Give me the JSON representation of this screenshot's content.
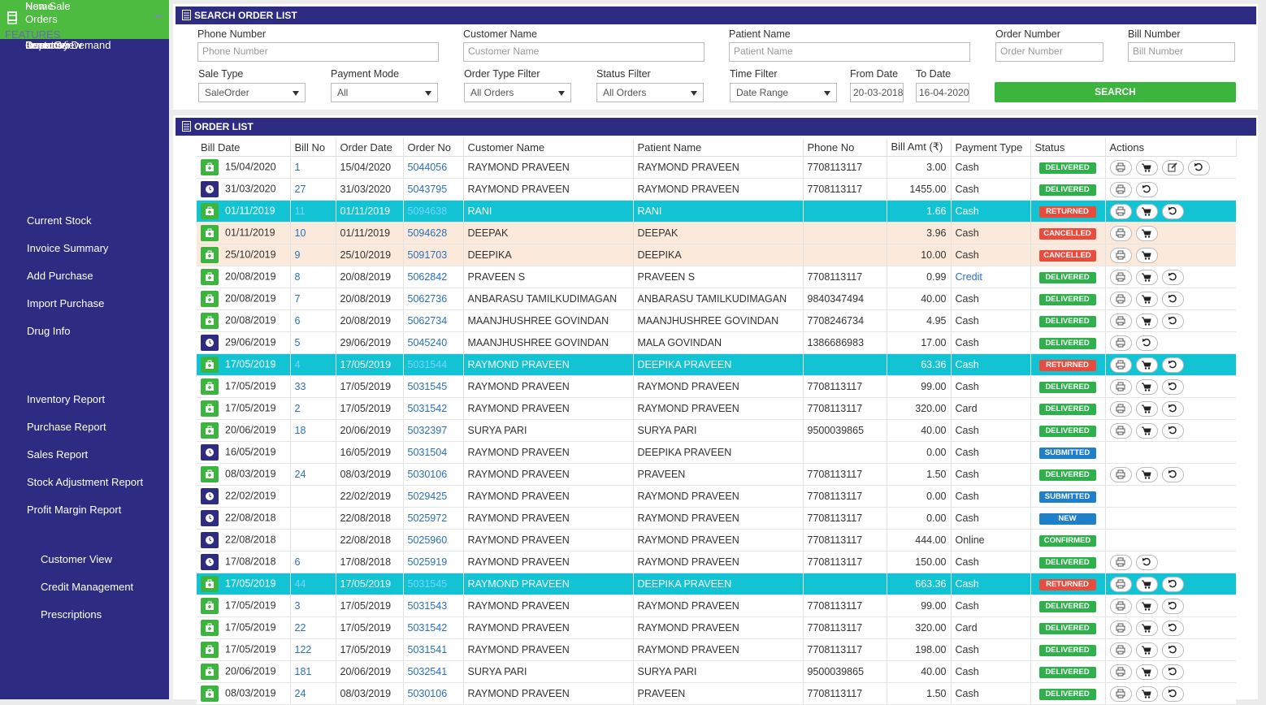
{
  "sidebar": {
    "heading": "FEATURES",
    "menu": [
      {
        "label": "Home"
      },
      {
        "label": "New Sale"
      },
      {
        "label": "Orders"
      },
      {
        "label": "Inventory",
        "submenu": [
          "Current Stock",
          "Invoice Summary",
          "Add Purchase",
          "Import Purchase",
          "Drug Info"
        ]
      },
      {
        "label": "Reports",
        "submenu": [
          "Inventory Report",
          "Purchase Report",
          "Sales Report",
          "Stock Adjustment Report",
          "Profit Margin Report"
        ]
      },
      {
        "label": "Customer",
        "submenu": [
          "Customer View",
          "Credit Management",
          "Prescriptions"
        ]
      },
      {
        "label": "Doctor View"
      },
      {
        "label": "Items On Demand"
      }
    ]
  },
  "search": {
    "title": "SEARCH ORDER LIST",
    "inputs": [
      {
        "label": "Phone Number",
        "placeholder": "Phone Number"
      },
      {
        "label": "Customer Name",
        "placeholder": "Customer Name"
      },
      {
        "label": "Patient Name",
        "placeholder": "Patient Name"
      },
      {
        "label": "Order Number",
        "placeholder": "Order Number"
      },
      {
        "label": "Bill Number",
        "placeholder": "Bill Number"
      }
    ],
    "selects": [
      {
        "label": "Sale Type",
        "value": "SaleOrder"
      },
      {
        "label": "Payment Mode",
        "value": "All"
      },
      {
        "label": "Order Type Filter",
        "value": "All Orders"
      },
      {
        "label": "Status Filter",
        "value": "All Orders"
      },
      {
        "label": "Time Filter",
        "value": "Date Range"
      }
    ],
    "dates": [
      {
        "label": "From Date",
        "value": "20-03-2018"
      },
      {
        "label": "To Date",
        "value": "16-04-2020"
      }
    ],
    "button": "SEARCH"
  },
  "order_list": {
    "title": "ORDER LIST",
    "columns": [
      "Bill Date",
      "Bill No",
      "Order Date",
      "Order No",
      "Customer Name",
      "Patient Name",
      "Phone No",
      "Bill Amt (₹)",
      "Payment Type",
      "Status",
      "Actions"
    ],
    "rows": [
      [
        "15/04/2020",
        "1",
        "15/04/2020",
        "5044056",
        "RAYMOND PRAVEEN",
        "RAYMOND PRAVEEN",
        "7708113117",
        "3.00",
        "Cash",
        "DELIVERED"
      ],
      [
        "31/03/2020",
        "27",
        "31/03/2020",
        "5043795",
        "RAYMOND PRAVEEN",
        "RAYMOND PRAVEEN",
        "7708113117",
        "1455.00",
        "Cash",
        "DELIVERED"
      ],
      [
        "01/11/2019",
        "11",
        "01/11/2019",
        "5094638",
        "RANI",
        "RANI",
        null,
        "1.66",
        "Cash",
        "RETURNED"
      ],
      [
        "01/11/2019",
        "10",
        "01/11/2019",
        "5094628",
        "DEEPAK",
        "DEEPAK",
        null,
        "3.96",
        "Cash",
        "CANCELLED"
      ],
      [
        "25/10/2019",
        "9",
        "25/10/2019",
        "5091703",
        "DEEPIKA",
        "DEEPIKA",
        null,
        "10.00",
        "Cash",
        "CANCELLED"
      ],
      [
        "20/08/2019",
        "8",
        "20/08/2019",
        "5062842",
        "PRAVEEN S",
        "PRAVEEN S",
        "7708113117",
        "0.99",
        "Credit",
        "DELIVERED"
      ],
      [
        "20/08/2019",
        "7",
        "20/08/2019",
        "5062736",
        "ANBARASU TAMILKUDIMAGAN",
        "ANBARASU TAMILKUDIMAGAN",
        "9840347494",
        "40.00",
        "Cash",
        "DELIVERED"
      ],
      [
        "20/08/2019",
        "6",
        "20/08/2019",
        "5062734",
        "MAANJHUSHREE GOVINDAN",
        "MAANJHUSHREE GOVINDAN",
        "7708246734",
        "4.95",
        "Cash",
        "DELIVERED"
      ],
      [
        "29/06/2019",
        "5",
        "29/06/2019",
        "5045240",
        "MAANJHUSHREE GOVINDAN",
        "MALA GOVINDAN",
        "1386686983",
        "17.00",
        "Cash",
        "DELIVERED"
      ],
      [
        "17/05/2019",
        "4",
        "17/05/2019",
        "5031544",
        "RAYMOND PRAVEEN",
        "DEEPIKA PRAVEEN",
        null,
        "63.36",
        "Cash",
        "RETURNED"
      ],
      [
        "17/05/2019",
        "33",
        "17/05/2019",
        "5031545",
        "RAYMOND PRAVEEN",
        "RAYMOND PRAVEEN",
        "7708113117",
        "99.00",
        "Cash",
        "DELIVERED"
      ],
      [
        "17/05/2019",
        "2",
        "17/05/2019",
        "5031542",
        "RAYMOND PRAVEEN",
        "RAYMOND PRAVEEN",
        "7708113117",
        "320.00",
        "Card",
        "DELIVERED"
      ],
      [
        "20/06/2019",
        "18",
        "20/06/2019",
        "5032397",
        "SURYA PARI",
        "SURYA PARI",
        "9500039865",
        "40.00",
        "Cash",
        "DELIVERED"
      ],
      [
        "16/05/2019",
        null,
        "16/05/2019",
        "5031504",
        "RAYMOND PRAVEEN",
        "DEEPIKA PRAVEEN",
        null,
        "0.00",
        "Cash",
        "SUBMITTED"
      ],
      [
        "08/03/2019",
        "24",
        "08/03/2019",
        "5030106",
        "RAYMOND PRAVEEN",
        "PRAVEEN",
        "7708113117",
        "1.50",
        "Cash",
        "DELIVERED"
      ],
      [
        "22/02/2019",
        null,
        "22/02/2019",
        "5029425",
        "RAYMOND PRAVEEN",
        "RAYMOND PRAVEEN",
        "7708113117",
        "0.00",
        "Cash",
        "SUBMITTED"
      ],
      [
        "22/08/2018",
        null,
        "22/08/2018",
        "5025972",
        "RAYMOND PRAVEEN",
        "RAYMOND PRAVEEN",
        "7708113117",
        "0.00",
        "Cash",
        "NEW"
      ],
      [
        "22/08/2018",
        null,
        "22/08/2018",
        "5025960",
        "RAYMOND PRAVEEN",
        "RAYMOND PRAVEEN",
        "7708113117",
        "444.00",
        "Online",
        "CONFIRMED"
      ],
      [
        "17/08/2018",
        "6",
        "17/08/2018",
        "5025919",
        "RAYMOND PRAVEEN",
        "RAYMOND PRAVEEN",
        "7708113117",
        "150.00",
        "Cash",
        "DELIVERED"
      ],
      [
        "17/05/2019",
        "44",
        "17/05/2019",
        "5031545",
        "RAYMOND PRAVEEN",
        "DEEPIKA PRAVEEN",
        null,
        "663.36",
        "Cash",
        "RETURNED"
      ],
      [
        "17/05/2019",
        "3",
        "17/05/2019",
        "5031543",
        "RAYMOND PRAVEEN",
        "RAYMOND PRAVEEN",
        "7708113117",
        "99.00",
        "Cash",
        "DELIVERED"
      ],
      [
        "17/05/2019",
        "22",
        "17/05/2019",
        "5031542",
        "RAYMOND PRAVEEN",
        "RAYMOND PRAVEEN",
        "7708113117",
        "320.00",
        "Card",
        "DELIVERED"
      ],
      [
        "17/05/2019",
        "122",
        "17/05/2019",
        "5031541",
        "RAYMOND PRAVEEN",
        "RAYMOND PRAVEEN",
        "7708113117",
        "198.00",
        "Cash",
        "DELIVERED"
      ],
      [
        "20/06/2019",
        "181",
        "20/06/2019",
        "5032541",
        "SURYA PARI",
        "SURYA PARI",
        "9500039865",
        "40.00",
        "Cash",
        "DELIVERED"
      ],
      [
        "08/03/2019",
        "24",
        "08/03/2019",
        "5030106",
        "RAYMOND PRAVEEN",
        "PRAVEEN",
        "7708113117",
        "1.50",
        "Cash",
        "DELIVERED"
      ]
    ]
  }
}
